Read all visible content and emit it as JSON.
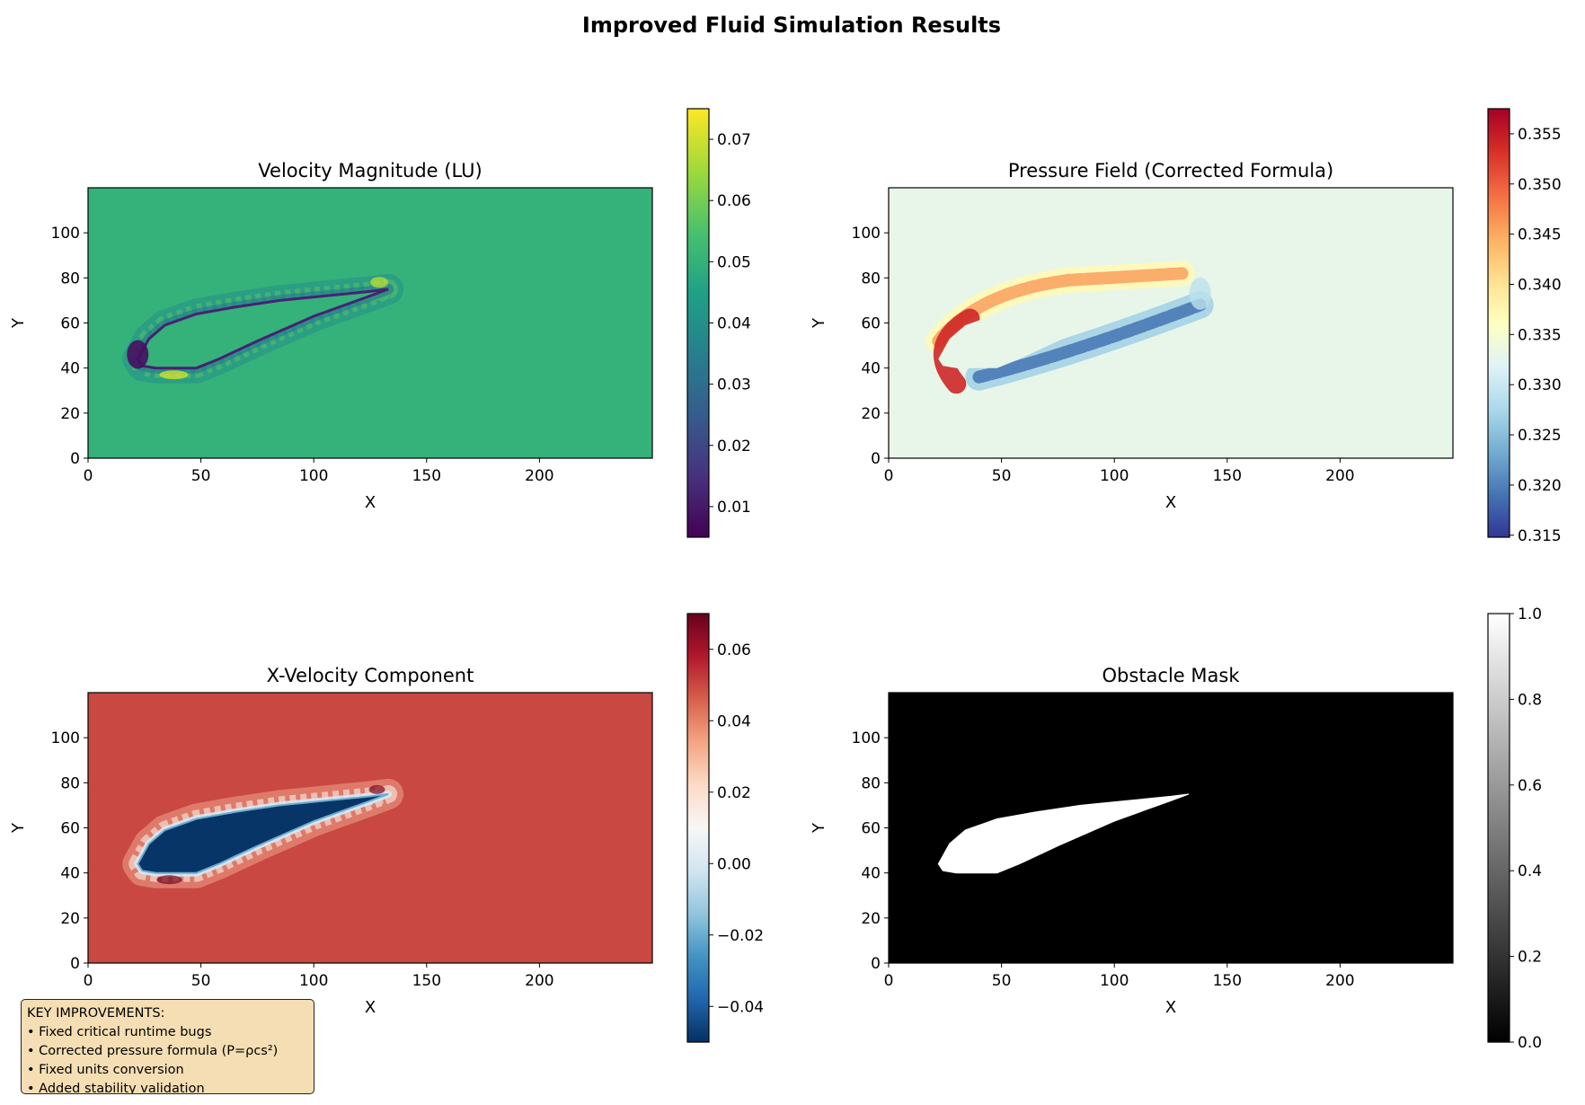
{
  "figure": {
    "title": "Improved Fluid Simulation Results"
  },
  "chart_data": [
    {
      "type": "heatmap",
      "title": "Velocity Magnitude (LU)",
      "xlabel": "X",
      "ylabel": "Y",
      "xlim": [
        0,
        250
      ],
      "ylim": [
        0,
        120
      ],
      "xticks": [
        0,
        50,
        100,
        150,
        200
      ],
      "yticks": [
        0,
        20,
        40,
        60,
        80,
        100
      ],
      "background_value": 0.05,
      "colormap": "viridis",
      "colorbar": {
        "min": 0.005,
        "max": 0.075,
        "ticks": [
          "0.01",
          "0.02",
          "0.03",
          "0.04",
          "0.05",
          "0.06",
          "0.07"
        ]
      },
      "features": [
        "low velocity rim at obstacle edge",
        "high velocity near leading edge lower side and trailing edge"
      ]
    },
    {
      "type": "heatmap",
      "title": "Pressure Field (Corrected Formula)",
      "xlabel": "X",
      "ylabel": "Y",
      "xlim": [
        0,
        250
      ],
      "ylim": [
        0,
        120
      ],
      "xticks": [
        0,
        50,
        100,
        150,
        200
      ],
      "yticks": [
        0,
        20,
        40,
        60,
        80,
        100
      ],
      "background_value": 0.333,
      "colormap": "RdYlBu_r",
      "colorbar": {
        "min": 0.3148,
        "max": 0.3575,
        "ticks": [
          "0.315",
          "0.320",
          "0.325",
          "0.330",
          "0.335",
          "0.340",
          "0.345",
          "0.350",
          "0.355"
        ]
      },
      "features": [
        "high pressure at leading edge",
        "low pressure along lower surface"
      ]
    },
    {
      "type": "heatmap",
      "title": "X-Velocity Component",
      "xlabel": "X",
      "ylabel": "Y",
      "xlim": [
        0,
        250
      ],
      "ylim": [
        0,
        120
      ],
      "xticks": [
        0,
        50,
        100,
        150,
        200
      ],
      "yticks": [
        0,
        20,
        40,
        60,
        80,
        100
      ],
      "background_value": 0.05,
      "colormap": "RdBu_r",
      "colorbar": {
        "min": -0.05,
        "max": 0.07,
        "ticks": [
          "−0.04",
          "−0.02",
          "0.00",
          "0.02",
          "0.04",
          "0.06"
        ]
      },
      "features": [
        "obstacle interior about -0.05",
        "low velocity halo around obstacle"
      ]
    },
    {
      "type": "heatmap",
      "title": "Obstacle Mask",
      "xlabel": "X",
      "ylabel": "Y",
      "xlim": [
        0,
        250
      ],
      "ylim": [
        0,
        120
      ],
      "xticks": [
        0,
        50,
        100,
        150,
        200
      ],
      "yticks": [
        0,
        20,
        40,
        60,
        80,
        100
      ],
      "background_value": 0,
      "obstacle_value": 1,
      "colormap": "gray",
      "colorbar": {
        "min": 0,
        "max": 1,
        "ticks": [
          "0.0",
          "0.2",
          "0.4",
          "0.6",
          "0.8",
          "1.0"
        ]
      },
      "obstacle_outline": [
        [
          22,
          44
        ],
        [
          27,
          53
        ],
        [
          34,
          59
        ],
        [
          48,
          64
        ],
        [
          65,
          67
        ],
        [
          85,
          70
        ],
        [
          105,
          72
        ],
        [
          125,
          74
        ],
        [
          133,
          75
        ],
        [
          125,
          72
        ],
        [
          100,
          63
        ],
        [
          75,
          52
        ],
        [
          58,
          44
        ],
        [
          48,
          40
        ],
        [
          30,
          40
        ],
        [
          24,
          41
        ]
      ]
    }
  ],
  "note": {
    "lines": [
      "KEY IMPROVEMENTS:",
      "• Fixed critical runtime bugs",
      "• Corrected pressure formula (P=ρcs²)",
      "• Fixed units conversion",
      "• Added stability validation"
    ]
  }
}
